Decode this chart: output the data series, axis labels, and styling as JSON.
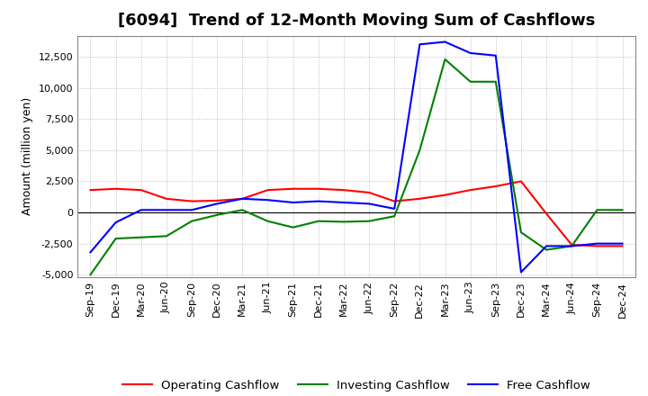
{
  "title": "[6094]  Trend of 12-Month Moving Sum of Cashflows",
  "ylabel": "Amount (million yen)",
  "x_labels": [
    "Sep-19",
    "Dec-19",
    "Mar-20",
    "Jun-20",
    "Sep-20",
    "Dec-20",
    "Mar-21",
    "Jun-21",
    "Sep-21",
    "Dec-21",
    "Mar-22",
    "Jun-22",
    "Sep-22",
    "Dec-22",
    "Mar-23",
    "Jun-23",
    "Sep-23",
    "Dec-23",
    "Mar-24",
    "Jun-24",
    "Sep-24",
    "Dec-24"
  ],
  "operating": [
    1800,
    1900,
    1800,
    1100,
    900,
    950,
    1100,
    1800,
    1900,
    1900,
    1800,
    1600,
    900,
    1100,
    1400,
    1800,
    2100,
    2500,
    -100,
    -2600,
    -2700,
    -2700
  ],
  "investing": [
    -5000,
    -2100,
    -2000,
    -1900,
    -700,
    -200,
    200,
    -700,
    -1200,
    -700,
    -750,
    -700,
    -300,
    5000,
    12300,
    10500,
    10500,
    -1600,
    -3000,
    -2700,
    200,
    200
  ],
  "free": [
    -3200,
    -800,
    200,
    200,
    200,
    700,
    1100,
    1000,
    800,
    900,
    800,
    700,
    300,
    13500,
    13700,
    12800,
    12600,
    -4800,
    -2700,
    -2700,
    -2500,
    -2500
  ],
  "operating_color": "#ff0000",
  "investing_color": "#008000",
  "free_color": "#0000ff",
  "background_color": "#ffffff",
  "grid_color": "#b0b0b0",
  "ylim": [
    -5200,
    14200
  ],
  "yticks": [
    -5000,
    -2500,
    0,
    2500,
    5000,
    7500,
    10000,
    12500
  ],
  "title_fontsize": 13,
  "axis_fontsize": 9,
  "tick_fontsize": 8,
  "legend_labels": [
    "Operating Cashflow",
    "Investing Cashflow",
    "Free Cashflow"
  ]
}
